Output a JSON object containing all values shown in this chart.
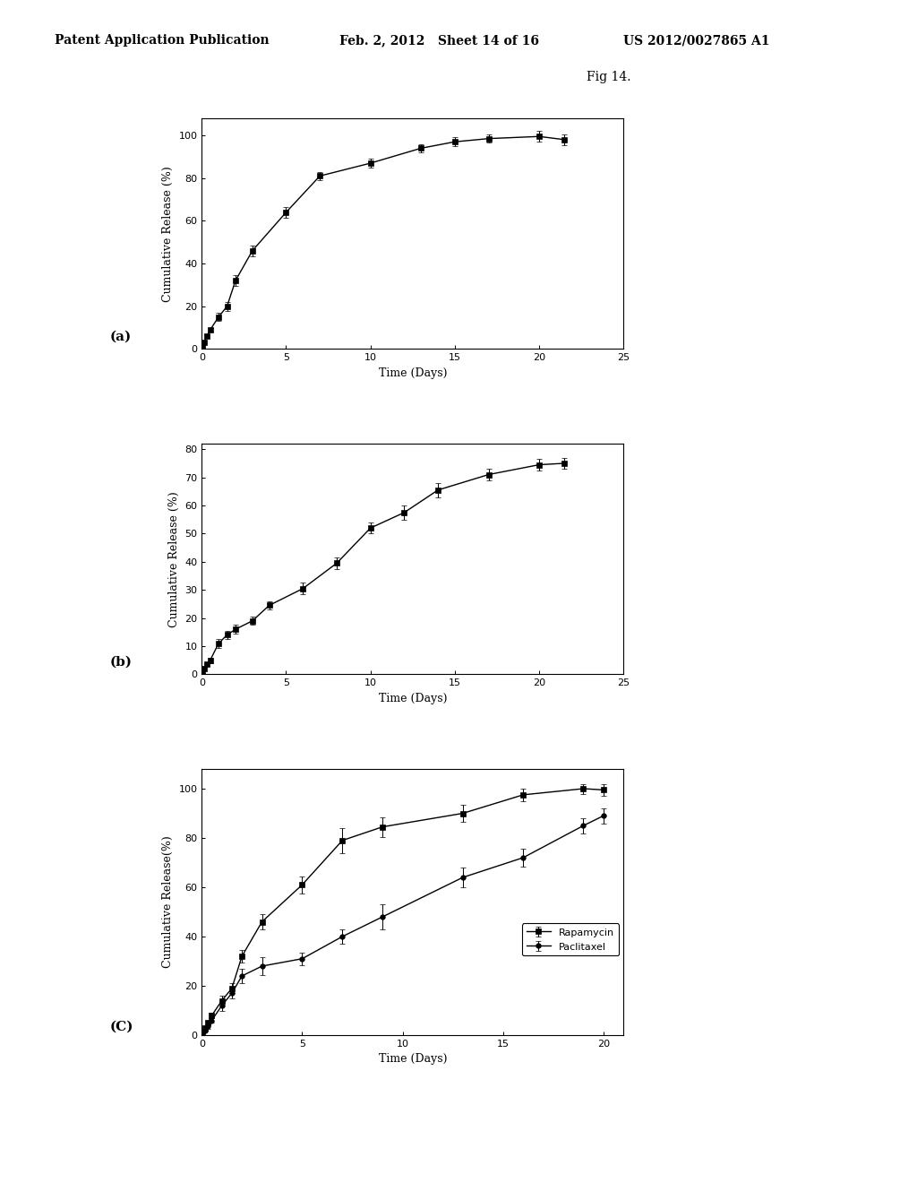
{
  "header_left": "Patent Application Publication",
  "header_mid": "Feb. 2, 2012   Sheet 14 of 16",
  "header_right": "US 2012/0027865 A1",
  "fig_label": "Fig 14.",
  "background_color": "#ffffff",
  "plot_a": {
    "label": "(a)",
    "x": [
      0.05,
      0.15,
      0.3,
      0.5,
      1.0,
      1.5,
      2.0,
      3.0,
      5.0,
      7.0,
      10.0,
      13.0,
      15.0,
      17.0,
      20.0,
      21.5
    ],
    "y": [
      1.5,
      3.0,
      6.0,
      9.0,
      15.0,
      20.0,
      32.0,
      46.0,
      64.0,
      81.0,
      87.0,
      94.0,
      97.0,
      98.5,
      99.5,
      98.0
    ],
    "yerr": [
      0.5,
      0.5,
      1.0,
      1.0,
      2.0,
      2.0,
      2.5,
      2.5,
      2.5,
      2.0,
      2.0,
      2.0,
      2.0,
      2.0,
      2.5,
      2.5
    ],
    "ylabel": "Cumulative Release (%)",
    "xlabel": "Time (Days)",
    "xlim": [
      0,
      25
    ],
    "ylim": [
      0,
      108
    ],
    "yticks": [
      0,
      20,
      40,
      60,
      80,
      100
    ],
    "xticks": [
      0,
      5,
      10,
      15,
      20,
      25
    ]
  },
  "plot_b": {
    "label": "(b)",
    "x": [
      0.05,
      0.15,
      0.3,
      0.5,
      1.0,
      1.5,
      2.0,
      3.0,
      4.0,
      6.0,
      8.0,
      10.0,
      12.0,
      14.0,
      17.0,
      20.0,
      21.5
    ],
    "y": [
      1.0,
      2.0,
      3.5,
      5.0,
      11.0,
      14.0,
      16.0,
      19.0,
      24.5,
      30.5,
      39.5,
      52.0,
      57.5,
      65.5,
      71.0,
      74.5,
      75.0
    ],
    "yerr": [
      0.5,
      0.5,
      0.5,
      1.0,
      1.5,
      1.5,
      1.5,
      1.5,
      1.5,
      2.0,
      2.0,
      2.0,
      2.5,
      2.5,
      2.0,
      2.0,
      2.0
    ],
    "ylabel": "Cumulative Release (%)",
    "xlabel": "Time (Days)",
    "xlim": [
      0,
      25
    ],
    "ylim": [
      0,
      82
    ],
    "yticks": [
      0,
      10,
      20,
      30,
      40,
      50,
      60,
      70,
      80
    ],
    "xticks": [
      0,
      5,
      10,
      15,
      20,
      25
    ]
  },
  "plot_c": {
    "label": "(C)",
    "rapamycin": {
      "x": [
        0.05,
        0.15,
        0.3,
        0.5,
        1.0,
        1.5,
        2.0,
        3.0,
        5.0,
        7.0,
        9.0,
        13.0,
        16.0,
        19.0,
        20.0
      ],
      "y": [
        1.5,
        3.0,
        5.0,
        8.0,
        14.0,
        19.0,
        32.0,
        46.0,
        61.0,
        79.0,
        84.5,
        90.0,
        97.5,
        100.0,
        99.5
      ],
      "yerr": [
        0.5,
        0.5,
        1.0,
        1.0,
        2.0,
        2.0,
        2.5,
        3.0,
        3.5,
        5.0,
        4.0,
        3.5,
        2.5,
        2.0,
        2.5
      ],
      "legend": "Rapamycin"
    },
    "paclitaxel": {
      "x": [
        0.05,
        0.15,
        0.3,
        0.5,
        1.0,
        1.5,
        2.0,
        3.0,
        5.0,
        7.0,
        9.0,
        13.0,
        16.0,
        19.0,
        20.0
      ],
      "y": [
        1.0,
        2.0,
        3.5,
        6.0,
        12.0,
        17.0,
        24.0,
        28.0,
        31.0,
        40.0,
        48.0,
        64.0,
        72.0,
        85.0,
        89.0
      ],
      "yerr": [
        0.5,
        0.5,
        1.0,
        1.0,
        2.0,
        2.0,
        3.0,
        3.5,
        2.5,
        3.0,
        5.0,
        4.0,
        3.5,
        3.0,
        3.0
      ],
      "legend": "Paclitaxel"
    },
    "ylabel": "Cumulative Release(%)",
    "xlabel": "Time (Days)",
    "xlim": [
      0,
      21
    ],
    "ylim": [
      0,
      108
    ],
    "yticks": [
      0,
      20,
      40,
      60,
      80,
      100
    ],
    "xticks": [
      0,
      5,
      10,
      15,
      20
    ]
  },
  "marker_color": "#000000",
  "marker_size": 4,
  "line_width": 1.0,
  "capsize": 2,
  "elinewidth": 0.7,
  "font_size_tick": 8,
  "font_size_header": 10,
  "font_size_fig_label": 10,
  "font_size_axis_label": 9,
  "font_size_panel_label": 11
}
